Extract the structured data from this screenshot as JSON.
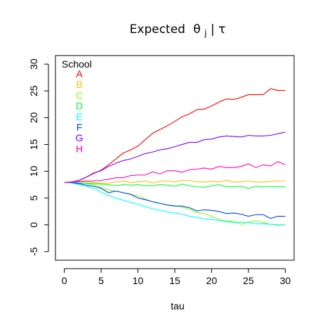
{
  "chart_data": {
    "type": "line",
    "title": "Expected θj|τ",
    "title_main": "Expected",
    "title_theta": "θ",
    "title_subscript": "j",
    "title_given": "|",
    "title_tau": "τ",
    "xlabel": "tau",
    "ylabel": "",
    "xlim": [
      -1.2,
      31.2
    ],
    "ylim": [
      -6.6,
      31.6
    ],
    "xticks": [
      "0",
      "5",
      "10",
      "15",
      "20",
      "25",
      "30"
    ],
    "yticks": [
      "-5",
      "0",
      "5",
      "10",
      "15",
      "20",
      "25",
      "30"
    ],
    "grid": false,
    "legend_title": "School",
    "legend_position": "top-left",
    "x": [
      0,
      1,
      2,
      3,
      4,
      5,
      6,
      7,
      8,
      9,
      10,
      11,
      12,
      13,
      14,
      15,
      16,
      17,
      18,
      19,
      20,
      21,
      22,
      23,
      24,
      25,
      26,
      27,
      28,
      29,
      30
    ],
    "series": [
      {
        "name": "A",
        "color": "#FF0000",
        "values": [
          7.9,
          8.0,
          8.3,
          8.9,
          9.6,
          10.2,
          11.2,
          12.3,
          13.4,
          14.0,
          14.7,
          15.9,
          17.1,
          17.8,
          18.5,
          19.3,
          20.2,
          20.7,
          21.5,
          21.6,
          22.2,
          22.9,
          23.5,
          23.4,
          23.8,
          24.3,
          24.3,
          24.3,
          25.4,
          25.1,
          25.1
        ]
      },
      {
        "name": "B",
        "color": "#FFBF00",
        "values": [
          7.9,
          8.0,
          8.0,
          8.1,
          7.9,
          7.8,
          7.8,
          8.0,
          8.2,
          7.9,
          8.0,
          8.2,
          7.8,
          8.1,
          8.2,
          8.0,
          8.3,
          8.3,
          8.0,
          8.0,
          8.1,
          8.0,
          8.3,
          8.0,
          8.0,
          8.2,
          8.0,
          8.0,
          8.1,
          8.2,
          8.2
        ]
      },
      {
        "name": "C",
        "color": "#80FF00",
        "values": [
          7.9,
          7.9,
          7.8,
          7.7,
          7.5,
          7.0,
          6.5,
          6.3,
          6.0,
          5.7,
          5.4,
          4.8,
          4.3,
          4.0,
          3.7,
          3.6,
          3.3,
          2.9,
          2.3,
          2.1,
          1.6,
          1.0,
          0.7,
          0.7,
          0.1,
          0.5,
          0.8,
          0.4,
          0.1,
          -0.1,
          0.0
        ]
      },
      {
        "name": "D",
        "color": "#00FF40",
        "values": [
          7.9,
          7.9,
          7.8,
          7.8,
          7.7,
          7.6,
          7.5,
          7.3,
          7.5,
          7.4,
          7.5,
          7.3,
          7.3,
          7.5,
          7.4,
          7.2,
          7.6,
          7.3,
          7.1,
          7.0,
          7.3,
          7.5,
          7.1,
          7.1,
          7.2,
          6.8,
          7.2,
          7.1,
          7.1,
          7.1,
          7.1
        ]
      },
      {
        "name": "E",
        "color": "#00FFFF",
        "values": [
          7.9,
          7.8,
          7.5,
          7.2,
          6.8,
          6.1,
          5.5,
          5.0,
          4.6,
          4.2,
          3.8,
          3.4,
          3.0,
          2.7,
          2.4,
          2.2,
          2.0,
          1.6,
          1.4,
          1.1,
          1.0,
          0.8,
          0.6,
          0.4,
          0.5,
          0.4,
          0.2,
          0.2,
          0.1,
          0.0,
          0.0
        ]
      },
      {
        "name": "F",
        "color": "#0040FF",
        "values": [
          7.9,
          7.9,
          7.7,
          7.4,
          7.2,
          6.8,
          6.0,
          6.3,
          6.0,
          5.7,
          5.0,
          4.7,
          4.3,
          4.0,
          3.7,
          3.5,
          3.5,
          3.2,
          2.6,
          2.8,
          2.7,
          2.5,
          2.1,
          2.2,
          2.0,
          1.6,
          1.9,
          1.9,
          1.2,
          1.6,
          1.6
        ]
      },
      {
        "name": "G",
        "color": "#8000FF",
        "values": [
          7.9,
          8.0,
          8.3,
          8.9,
          9.7,
          10.1,
          10.9,
          11.5,
          12.0,
          12.3,
          12.8,
          13.3,
          13.6,
          14.0,
          14.2,
          14.6,
          15.0,
          15.4,
          15.4,
          15.9,
          16.0,
          16.4,
          16.6,
          16.5,
          16.4,
          16.7,
          16.6,
          16.6,
          16.7,
          17.0,
          17.3
        ]
      },
      {
        "name": "H",
        "color": "#FF00BF",
        "values": [
          7.9,
          8.0,
          8.1,
          8.2,
          8.2,
          8.3,
          8.5,
          8.8,
          8.8,
          9.2,
          9.3,
          9.3,
          9.9,
          9.5,
          10.1,
          10.1,
          9.8,
          10.3,
          10.4,
          10.6,
          10.4,
          10.9,
          10.7,
          10.7,
          10.9,
          11.4,
          10.7,
          11.2,
          11.0,
          11.8,
          11.2
        ]
      }
    ]
  }
}
